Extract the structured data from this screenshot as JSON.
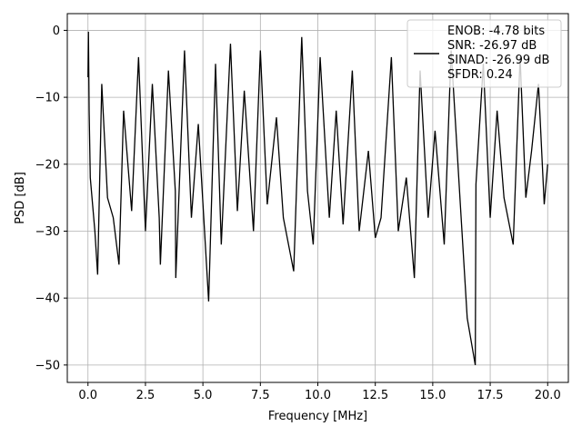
{
  "chart_data": {
    "type": "line",
    "title": "",
    "xlabel": "Frequency [MHz]",
    "ylabel": "PSD [dB]",
    "xlim": [
      -0.9,
      20.9
    ],
    "ylim": [
      -52.6,
      2.5
    ],
    "xticks": [
      0.0,
      2.5,
      5.0,
      7.5,
      10.0,
      12.5,
      15.0,
      17.5,
      20.0
    ],
    "xtick_labels": [
      "0.0",
      "2.5",
      "5.0",
      "7.5",
      "10.0",
      "12.5",
      "15.0",
      "17.5",
      "20.0"
    ],
    "yticks": [
      0,
      -10,
      -20,
      -30,
      -40,
      -50
    ],
    "ytick_labels": [
      "0",
      "−10",
      "−20",
      "−30",
      "−40",
      "−50"
    ],
    "grid": true,
    "legend_position": "top-right",
    "line_color": "#000000",
    "series": [
      {
        "legend_lines": [
          "ENOB: -4.78 bits",
          "SNR: -26.97 dB",
          "SINAD: -26.99 dB",
          "SFDR: 0.24"
        ],
        "x": [
          0.0,
          0.02,
          0.05,
          0.1,
          0.3,
          0.42,
          0.6,
          0.85,
          1.1,
          1.35,
          1.55,
          1.9,
          2.2,
          2.5,
          2.8,
          3.1,
          3.15,
          3.5,
          3.8,
          3.82,
          4.2,
          4.5,
          4.8,
          5.25,
          5.55,
          5.8,
          6.2,
          6.5,
          6.8,
          7.2,
          7.5,
          7.8,
          8.2,
          8.5,
          8.95,
          9.3,
          9.55,
          9.8,
          10.1,
          10.5,
          10.8,
          11.1,
          11.5,
          11.8,
          12.2,
          12.5,
          12.75,
          13.2,
          13.5,
          13.85,
          14.2,
          14.45,
          14.8,
          15.1,
          15.5,
          15.8,
          16.2,
          16.5,
          16.85,
          16.88,
          17.2,
          17.5,
          17.8,
          18.1,
          18.5,
          18.8,
          19.05,
          19.3,
          19.6,
          19.85,
          20.0
        ],
        "y": [
          -7,
          -0.2,
          -12,
          -22,
          -30,
          -36.5,
          -8,
          -25,
          -28,
          -35,
          -12,
          -27,
          -4,
          -30,
          -8,
          -28,
          -35,
          -6,
          -24,
          -37,
          -3,
          -28,
          -14,
          -40.5,
          -5,
          -32,
          -2,
          -27,
          -9,
          -30,
          -3,
          -26,
          -13,
          -28,
          -36,
          -1,
          -24,
          -32,
          -4,
          -28,
          -12,
          -29,
          -6,
          -30,
          -18,
          -31,
          -28,
          -4,
          -30,
          -22,
          -37,
          -6,
          -28,
          -15,
          -32,
          -3,
          -26,
          -43,
          -50,
          -23,
          -5,
          -28,
          -12,
          -25,
          -32,
          -4,
          -25,
          -18,
          -8,
          -26,
          -20
        ]
      }
    ]
  }
}
